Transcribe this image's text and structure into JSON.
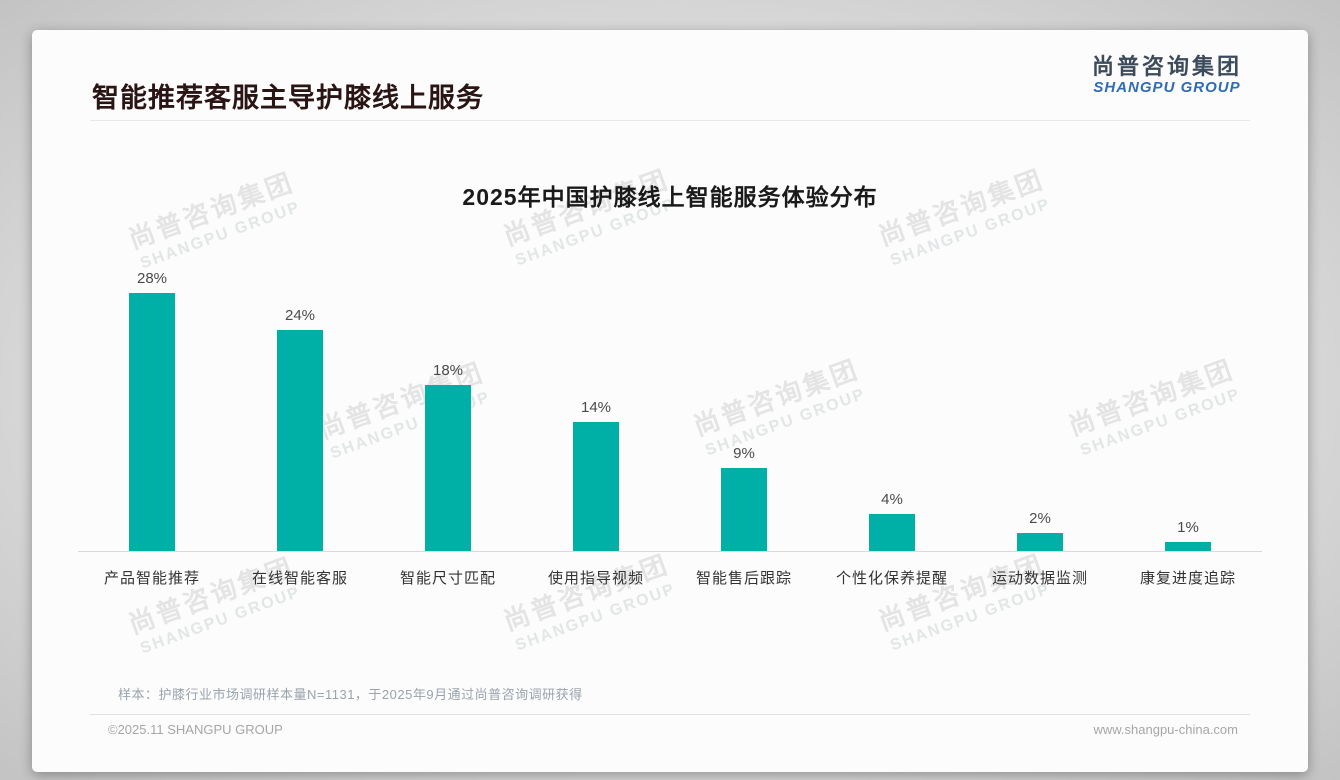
{
  "page": {
    "title": "智能推荐客服主导护膝线上服务",
    "logo": {
      "cn": "尚普咨询集团",
      "en": "SHANGPU GROUP"
    },
    "watermark": {
      "cn": "尚普咨询集团",
      "en": "SHANGPU GROUP"
    },
    "footnote": "样本：护膝行业市场调研样本量N=1131，于2025年9月通过尚普咨询调研获得",
    "footer_left": "©2025.11 SHANGPU GROUP",
    "footer_right": "www.shangpu-china.com"
  },
  "colors": {
    "bar": "#00B0A6",
    "title": "#2a1414",
    "logo_cn": "#3c4b5c",
    "logo_en": "#2e6cb5",
    "axis": "#d9d9d9",
    "card_bg": "#fcfcfc"
  },
  "chart_data": {
    "type": "bar",
    "title": "2025年中国护膝线上智能服务体验分布",
    "categories": [
      "产品智能推荐",
      "在线智能客服",
      "智能尺寸匹配",
      "使用指导视频",
      "智能售后跟踪",
      "个性化保养提醒",
      "运动数据监测",
      "康复进度追踪"
    ],
    "values": [
      28,
      24,
      18,
      14,
      9,
      4,
      2,
      1
    ],
    "value_labels": [
      "28%",
      "24%",
      "18%",
      "14%",
      "9%",
      "4%",
      "2%",
      "1%"
    ],
    "unit": "%",
    "xlabel": "",
    "ylabel": "",
    "ylim": [
      0,
      30
    ],
    "grid": false,
    "legend": "none",
    "bar_color": "#00B0A6"
  }
}
